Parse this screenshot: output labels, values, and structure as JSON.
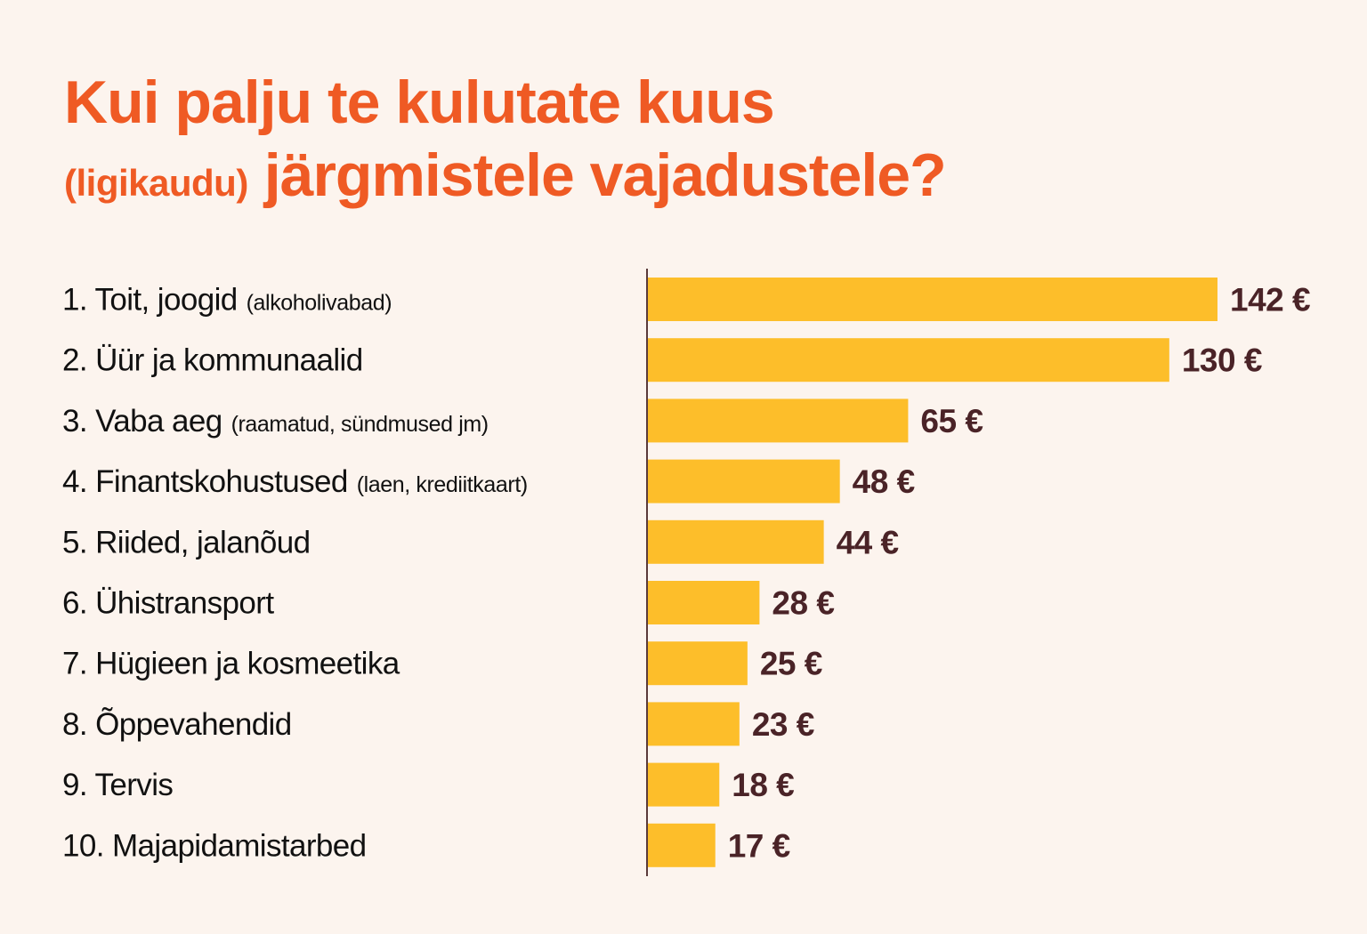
{
  "title": {
    "line1": "Kui palju te kulutate kuus",
    "line2_small": "(ligikaudu)",
    "line2_main": "järgmistele vajadustele?"
  },
  "colors": {
    "background": "#FCF4EE",
    "title": "#EF5A24",
    "bar": "#FDBE2A",
    "value_text": "#4A2327",
    "label_text": "#111111",
    "axis": "#5A3A3A"
  },
  "chart_data": {
    "type": "bar",
    "orientation": "horizontal",
    "title": "Kui palju te kulutate kuus (ligikaudu) järgmistele vajadustele?",
    "unit": "€",
    "categories": [
      {
        "main": "1. Toit, joogid",
        "sub": "(alkoholivabad)"
      },
      {
        "main": "2. Üür ja kommunaalid",
        "sub": ""
      },
      {
        "main": "3. Vaba aeg",
        "sub": "(raamatud, sündmused jm)"
      },
      {
        "main": "4. Finantskohustused",
        "sub": "(laen, krediitkaart)"
      },
      {
        "main": "5. Riided, jalanõud",
        "sub": ""
      },
      {
        "main": "6. Ühistransport",
        "sub": ""
      },
      {
        "main": "7. Hügieen ja kosmeetika",
        "sub": ""
      },
      {
        "main": "8. Õppevahendid",
        "sub": ""
      },
      {
        "main": "9. Tervis",
        "sub": ""
      },
      {
        "main": "10. Majapidamistarbed",
        "sub": ""
      }
    ],
    "values": [
      142,
      130,
      65,
      48,
      44,
      28,
      25,
      23,
      18,
      17
    ],
    "value_labels": [
      "142 €",
      "130 €",
      "65 €",
      "48 €",
      "44 €",
      "28 €",
      "25 €",
      "23 €",
      "18 €",
      "17 €"
    ],
    "grid": false,
    "legend": "none"
  }
}
